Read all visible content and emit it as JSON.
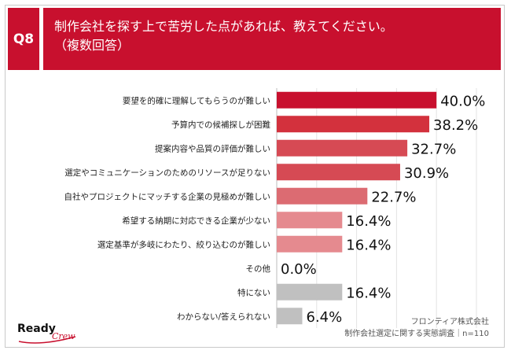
{
  "header": {
    "question_no": "Q8",
    "title_line1": "制作会社を探す上で苦労した点があれば、教えてください。",
    "title_line2": "（複数回答）"
  },
  "chart_data": {
    "type": "bar",
    "orientation": "horizontal",
    "categories": [
      "要望を的確に理解してもらうのが難しい",
      "予算内での候補探しが困難",
      "提案内容や品質の評価が難しい",
      "選定やコミュニケーションのためのリソースが足りない",
      "自社やプロジェクトにマッチする企業の見極めが難しい",
      "希望する納期に対応できる企業が少ない",
      "選定基準が多岐にわたり、絞り込むのが難しい",
      "その他",
      "特にない",
      "わからない/答えられない"
    ],
    "values": [
      40.0,
      38.2,
      32.7,
      30.9,
      22.7,
      16.4,
      16.4,
      0.0,
      16.4,
      6.4
    ],
    "value_labels": [
      "40.0%",
      "38.2%",
      "32.7%",
      "30.9%",
      "22.7%",
      "16.4%",
      "16.4%",
      "0.0%",
      "16.4%",
      "6.4%"
    ],
    "bar_colors": [
      "#c8102e",
      "#d3313d",
      "#d64a54",
      "#d64a54",
      "#dc6b72",
      "#e58a8f",
      "#e58a8f",
      "#e58a8f",
      "#c0c0c0",
      "#c0c0c0"
    ],
    "xlim": [
      0,
      50
    ],
    "grid": true,
    "title": "",
    "xlabel": "",
    "ylabel": ""
  },
  "footer": {
    "source_line1": "フロンティア株式会社",
    "source_line2": "制作会社選定に関する実態調査｜n=110",
    "logo_text": "Ready",
    "logo_sub": "Crew"
  },
  "colors": {
    "accent": "#c8102e",
    "grid": "#e3e3e3",
    "axis": "#bdbdbd"
  }
}
